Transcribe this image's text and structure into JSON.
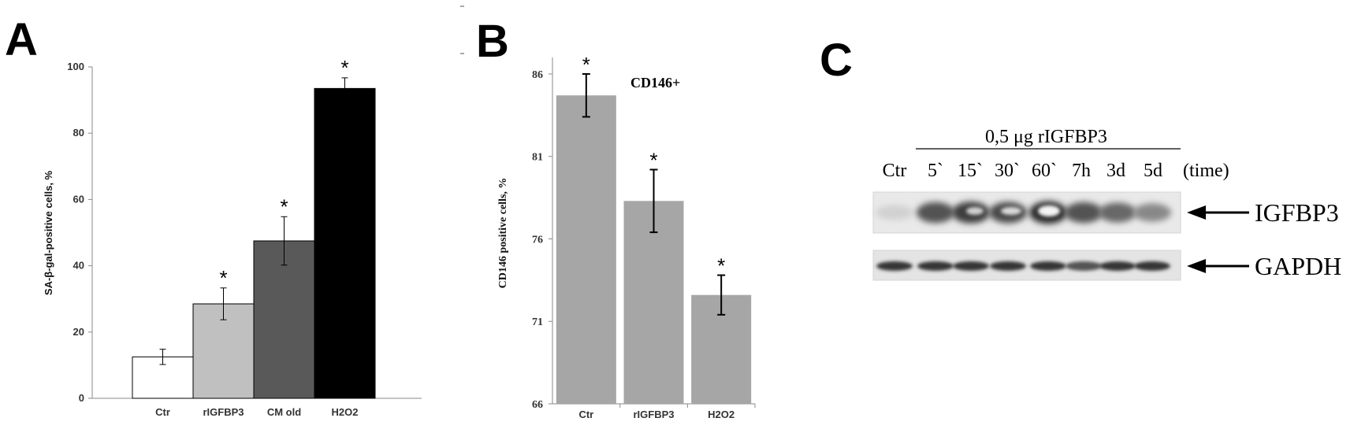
{
  "panels": {
    "A": {
      "letter": "A",
      "chart_data": {
        "type": "bar",
        "categories": [
          "Ctr",
          "rIGFBP3",
          "CM old",
          "H2O2"
        ],
        "values": [
          12.5,
          28.5,
          47.5,
          93.5
        ],
        "errors": [
          2.3,
          4.8,
          7.3,
          3.2
        ],
        "significant": [
          false,
          true,
          true,
          true
        ],
        "significance_marker": "*",
        "colors": [
          "#ffffff",
          "#c0c0c0",
          "#595959",
          "#000000"
        ],
        "ylabel": "SA-β-gal-positive cells, %",
        "ylim": [
          0,
          100
        ],
        "yticks": [
          0,
          20,
          40,
          60,
          80,
          100
        ]
      }
    },
    "B": {
      "letter": "B",
      "chart_data": {
        "type": "bar",
        "title": "CD146+",
        "categories": [
          "Ctr",
          "rIGFBP3",
          "H2O2"
        ],
        "values": [
          84.7,
          78.3,
          72.6
        ],
        "errors": [
          1.3,
          1.9,
          1.2
        ],
        "significant": [
          true,
          true,
          true
        ],
        "significance_marker": "*",
        "bar_color": "#a6a6a6",
        "ylabel": "CD146 positive cells, %",
        "ylim": [
          66,
          87
        ],
        "yticks": [
          66,
          71,
          76,
          81,
          86
        ]
      }
    },
    "C": {
      "letter": "C",
      "treatment_label": "0,5 μg rIGFBP3",
      "lanes": [
        "Ctr",
        "5`",
        "15`",
        "30`",
        "60`",
        "7h",
        "3d",
        "5d"
      ],
      "time_label": "(time)",
      "bands": [
        "IGFBP3",
        "GAPDH"
      ],
      "igfbp3_intensity": [
        0.1,
        0.7,
        0.8,
        0.75,
        0.9,
        0.7,
        0.6,
        0.45
      ],
      "gapdh_intensity": [
        0.85,
        0.85,
        0.85,
        0.85,
        0.85,
        0.7,
        0.85,
        0.85
      ]
    }
  }
}
